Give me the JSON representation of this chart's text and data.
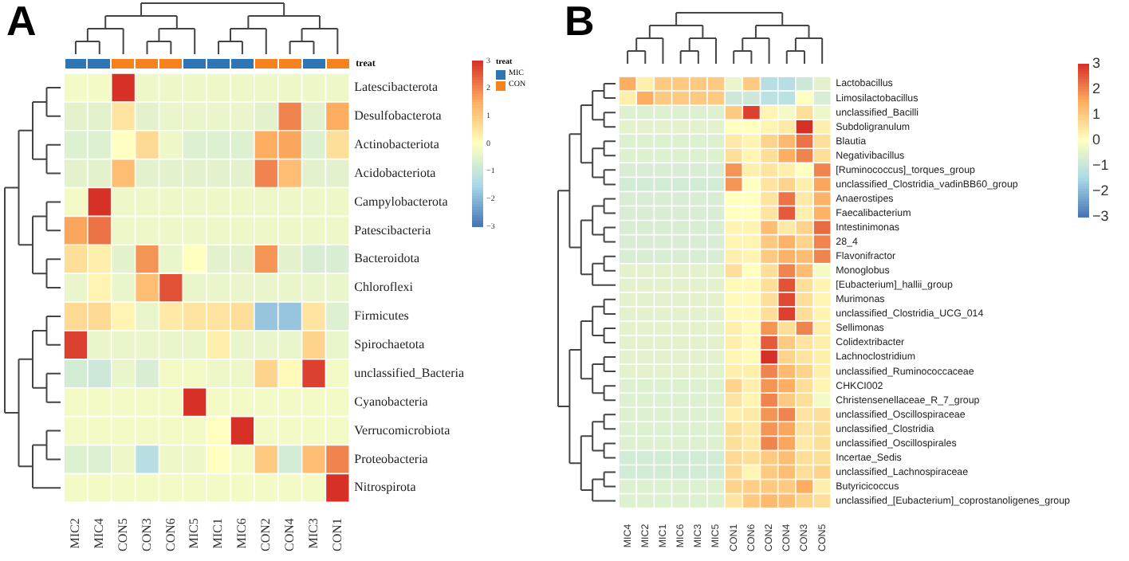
{
  "chart_data": [
    {
      "type": "heatmap",
      "title": "A",
      "legend_title": "treat",
      "annotations": [
        "treat",
        "MIC",
        "CON"
      ],
      "categories": [
        "MIC2",
        "MIC4",
        "CON5",
        "CON3",
        "CON6",
        "MIC5",
        "MIC1",
        "MIC6",
        "CON2",
        "CON4",
        "MIC3",
        "CON1"
      ],
      "y_categories": [
        "Latescibacterota",
        "Desulfobacterota",
        "Actinobacteriota",
        "Acidobacteriota",
        "Campylobacterota",
        "Patescibacteria",
        "Bacteroidota",
        "Chloroflexi",
        "Firmicutes",
        "Spirochaetota",
        "unclassified_Bacteria",
        "Cyanobacteria",
        "Verrucomicrobiota",
        "Proteobacteria",
        "Nitrospirota"
      ],
      "colors": [
        "#2e75b6",
        "#2e75b6",
        "#f5821f",
        "#f5821f",
        "#f5821f",
        "#2e75b6",
        "#2e75b6",
        "#2e75b6",
        "#f5821f",
        "#f5821f",
        "#2e75b6",
        "#f5821f"
      ],
      "cells": [
        [
          -0.2,
          -0.2,
          3,
          -0.3,
          -0.3,
          -0.3,
          -0.3,
          -0.3,
          -0.3,
          -0.3,
          -0.3,
          -0.3
        ],
        [
          -0.5,
          -0.5,
          0.5,
          -0.5,
          -0.4,
          -0.4,
          -0.4,
          -0.4,
          -0.5,
          2,
          -0.5,
          1.5
        ],
        [
          -0.6,
          -0.6,
          0,
          0.7,
          -0.3,
          -0.6,
          -0.6,
          -0.6,
          1.5,
          1.6,
          -0.6,
          0.6
        ],
        [
          -0.5,
          -0.5,
          1.2,
          -0.5,
          -0.5,
          -0.5,
          -0.5,
          -0.5,
          2,
          1.2,
          -0.5,
          -0.5
        ],
        [
          -0.2,
          3,
          -0.3,
          -0.3,
          -0.3,
          -0.3,
          -0.3,
          -0.3,
          -0.3,
          -0.3,
          -0.3,
          -0.3
        ],
        [
          1.6,
          2.2,
          -0.3,
          -0.3,
          -0.3,
          -0.3,
          -0.3,
          -0.3,
          -0.3,
          -0.3,
          -0.3,
          -0.3
        ],
        [
          0.6,
          0.3,
          -0.5,
          1.8,
          -0.4,
          0,
          -0.5,
          -0.5,
          1.8,
          -0.5,
          -0.7,
          -0.7
        ],
        [
          -0.4,
          0.2,
          -0.4,
          1.2,
          2.6,
          -0.4,
          -0.4,
          -0.4,
          -0.4,
          -0.4,
          -0.4,
          -0.4
        ],
        [
          0.7,
          0.7,
          0.2,
          -0.4,
          0.4,
          0.5,
          0.5,
          0.6,
          -1.8,
          -1.8,
          0.5,
          -0.6
        ],
        [
          2.8,
          -0.4,
          -0.4,
          -0.4,
          -0.4,
          -0.4,
          0.3,
          -0.4,
          -0.4,
          -0.4,
          0.8,
          -0.4
        ],
        [
          -0.8,
          -0.9,
          -0.4,
          -0.7,
          -0.2,
          -0.2,
          -0.3,
          -0.3,
          0.8,
          0.1,
          2.8,
          -0.2
        ],
        [
          -0.2,
          -0.2,
          -0.2,
          -0.2,
          -0.2,
          3,
          -0.2,
          -0.2,
          -0.2,
          -0.2,
          -0.2,
          -0.2
        ],
        [
          -0.2,
          -0.2,
          -0.2,
          -0.2,
          -0.2,
          -0.2,
          0,
          3,
          -0.2,
          -0.2,
          -0.2,
          -0.2
        ],
        [
          -0.6,
          -0.6,
          -0.3,
          -1.3,
          -0.3,
          -0.3,
          0,
          -0.2,
          1,
          -0.8,
          1.2,
          2
        ],
        [
          -0.2,
          -0.2,
          -0.2,
          -0.2,
          -0.2,
          -0.2,
          -0.2,
          -0.2,
          -0.2,
          -0.2,
          -0.2,
          3
        ]
      ],
      "clim": [
        -3,
        3
      ],
      "cticks": [
        -3,
        -2,
        -1,
        0,
        1,
        2,
        3
      ]
    },
    {
      "type": "heatmap",
      "title": "B",
      "categories": [
        "MIC4",
        "MIC2",
        "MIC1",
        "MIC6",
        "MIC3",
        "MIC5",
        "CON1",
        "CON6",
        "CON2",
        "CON4",
        "CON3",
        "CON5"
      ],
      "y_categories": [
        "Lactobacillus",
        "Limosilactobacillus",
        "unclassified_Bacilli",
        "Subdoligranulum",
        "Blautia",
        "Negativibacillus",
        "[Ruminococcus]_torques_group",
        "unclassified_Clostridia_vadinBB60_group",
        "Anaerostipes",
        "Faecalibacterium",
        "Intestinimonas",
        "28_4",
        "Flavonifractor",
        "Monoglobus",
        "[Eubacterium]_hallii_group",
        "Murimonas",
        "unclassified_Clostridia_UCG_014",
        "Sellimonas",
        "Colidextribacter",
        "Lachnoclostridium",
        "unclassified_Ruminococcaceae",
        "CHKCI002",
        "Christensenellaceae_R_7_group",
        "unclassified_Oscillospiraceae",
        "unclassified_Clostridia",
        "unclassified_Oscillospirales",
        "Incertae_Sedis",
        "unclassified_Lachnospiraceae",
        "Butyricicoccus",
        "unclassified_[Eubacterium]_coprostanoligenes_group"
      ],
      "cells": [
        [
          1.5,
          0.3,
          1,
          1,
          1,
          1,
          -0.4,
          1,
          -1.3,
          -1.3,
          -0.9,
          -0.5
        ],
        [
          0.3,
          1.5,
          1,
          1,
          1,
          1,
          -0.9,
          -0.9,
          -1.2,
          -1.2,
          0,
          -0.7
        ],
        [
          -0.6,
          -0.6,
          -0.6,
          -0.6,
          -0.6,
          -0.6,
          1,
          2.8,
          0.2,
          -0.2,
          0.6,
          -0.3
        ],
        [
          -0.5,
          -0.5,
          -0.5,
          -0.5,
          -0.5,
          -0.5,
          0,
          0,
          0.2,
          0.4,
          3,
          0.3
        ],
        [
          -0.6,
          -0.6,
          -0.6,
          -0.6,
          -0.6,
          -0.6,
          0.4,
          0.2,
          0.8,
          1.3,
          2.2,
          0.6
        ],
        [
          -0.6,
          -0.6,
          -0.6,
          -0.6,
          -0.6,
          -0.6,
          0.6,
          0.2,
          0.6,
          1.5,
          2,
          0.6
        ],
        [
          -0.7,
          -0.7,
          -0.7,
          -0.7,
          -0.7,
          -0.7,
          1.8,
          0.3,
          0.5,
          0.3,
          0,
          2
        ],
        [
          -0.8,
          -0.8,
          -0.8,
          -0.8,
          -0.8,
          -0.8,
          1.8,
          0,
          0.5,
          0.8,
          0.3,
          1.6
        ],
        [
          -0.7,
          -0.7,
          -0.7,
          -0.7,
          -0.7,
          -0.7,
          0,
          0,
          0.5,
          2.2,
          0.4,
          1.4
        ],
        [
          -0.7,
          -0.7,
          -0.7,
          -0.7,
          -0.7,
          -0.7,
          0,
          0,
          0.5,
          2.5,
          0.3,
          1.4
        ],
        [
          -0.7,
          -0.7,
          -0.7,
          -0.7,
          -0.7,
          -0.7,
          0.2,
          0.2,
          1.2,
          0.4,
          0.8,
          2.3
        ],
        [
          -0.7,
          -0.7,
          -0.7,
          -0.7,
          -0.7,
          -0.7,
          0.2,
          0.2,
          1,
          1.4,
          0.8,
          2
        ],
        [
          -0.7,
          -0.7,
          -0.7,
          -0.7,
          -0.7,
          -0.7,
          0.3,
          0.2,
          1,
          1.4,
          1.2,
          2
        ],
        [
          -0.5,
          -0.5,
          -0.5,
          -0.5,
          -0.5,
          -0.5,
          0.6,
          0,
          0.6,
          2,
          1.2,
          -0.2
        ],
        [
          -0.5,
          -0.5,
          -0.5,
          -0.5,
          -0.5,
          -0.5,
          0.1,
          0.1,
          0.6,
          2.6,
          0.6,
          0.2
        ],
        [
          -0.5,
          -0.5,
          -0.5,
          -0.5,
          -0.5,
          -0.5,
          0.1,
          0.1,
          0.6,
          2.7,
          0.6,
          0.2
        ],
        [
          -0.5,
          -0.5,
          -0.5,
          -0.5,
          -0.5,
          -0.5,
          0.1,
          0.1,
          0.6,
          2.8,
          0.6,
          0.2
        ],
        [
          -0.5,
          -0.5,
          -0.5,
          -0.5,
          -0.5,
          -0.5,
          0.3,
          0.1,
          1.8,
          0.6,
          2,
          0.3
        ],
        [
          -0.5,
          -0.5,
          -0.5,
          -0.5,
          -0.5,
          -0.5,
          0.3,
          0.1,
          2.5,
          1,
          0.5,
          0.3
        ],
        [
          -0.5,
          -0.5,
          -0.5,
          -0.5,
          -0.5,
          -0.5,
          0.2,
          0.1,
          3,
          0.8,
          0.5,
          0.3
        ],
        [
          -0.5,
          -0.5,
          -0.5,
          -0.5,
          -0.5,
          -0.5,
          0.3,
          0.3,
          2,
          1.3,
          0.8,
          0.3
        ],
        [
          -0.6,
          -0.6,
          -0.6,
          -0.6,
          -0.6,
          -0.6,
          0.8,
          0.3,
          1.8,
          1.5,
          0.6,
          0.2
        ],
        [
          -0.6,
          -0.6,
          -0.6,
          -0.6,
          -0.6,
          -0.6,
          0.5,
          0.2,
          2,
          1,
          0.6,
          -0.2
        ],
        [
          -0.6,
          -0.6,
          -0.6,
          -0.6,
          -0.6,
          -0.6,
          0.3,
          0.4,
          1.8,
          2,
          0.5,
          0.6
        ],
        [
          -0.6,
          -0.6,
          -0.6,
          -0.6,
          -0.6,
          -0.6,
          0.6,
          0.4,
          1.8,
          1.6,
          0.5,
          0.6
        ],
        [
          -0.6,
          -0.6,
          -0.6,
          -0.6,
          -0.6,
          -0.6,
          0.6,
          0.4,
          2,
          1.6,
          0.4,
          0.6
        ],
        [
          -0.8,
          -0.8,
          -0.8,
          -0.8,
          -0.8,
          -0.8,
          0.7,
          0.6,
          1,
          1.2,
          0.6,
          0.6
        ],
        [
          -0.8,
          -0.8,
          -0.8,
          -0.8,
          -0.8,
          -0.8,
          0.7,
          0.2,
          1,
          1.2,
          0.6,
          0.8
        ],
        [
          -0.6,
          -0.6,
          -0.6,
          -0.6,
          -0.6,
          -0.6,
          0.8,
          0.9,
          1,
          1,
          1.5,
          0.3
        ],
        [
          -0.6,
          -0.6,
          -0.6,
          -0.6,
          -0.6,
          -0.6,
          0.5,
          1,
          1.3,
          1.2,
          0.8,
          0.6
        ]
      ],
      "clim": [
        -3,
        3
      ],
      "cticks": [
        -3,
        -2,
        -1,
        0,
        1,
        2,
        3
      ]
    }
  ]
}
